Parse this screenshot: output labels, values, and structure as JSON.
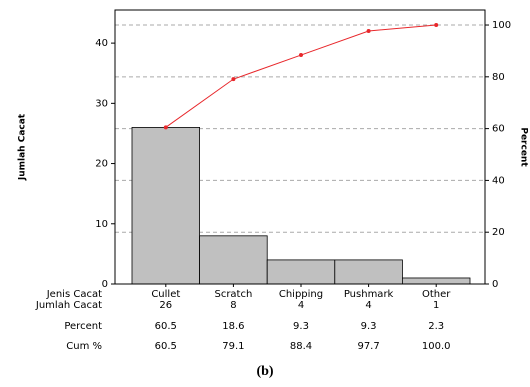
{
  "chart_data": {
    "type": "pareto",
    "ylabel": "Jumlah Cacat",
    "y2label": "Percent",
    "category_label": "Jenis Cacat",
    "categories": [
      "Cullet",
      "Scratch",
      "Chipping",
      "Pushmark",
      "Other"
    ],
    "series": [
      {
        "name": "Jumlah Cacat",
        "color": "#c0c0c0",
        "values": [
          26,
          8,
          4,
          4,
          1
        ]
      },
      {
        "name": "Cum %",
        "color": "#e8272b",
        "axis": "y2",
        "values": [
          60.5,
          79.1,
          88.4,
          97.7,
          100
        ],
        "value_labels": [
          "60.5",
          "79.1",
          "88.4",
          "97.7",
          "100.0"
        ]
      }
    ],
    "percent": {
      "name": "Percent",
      "values": [
        60.5,
        18.6,
        9.3,
        9.3,
        2.3
      ]
    },
    "ylim": [
      0,
      45.5
    ],
    "yticks": [
      0,
      10,
      20,
      30,
      40
    ],
    "y2lim": [
      0,
      105.8
    ],
    "y2ticks": [
      0,
      20,
      40,
      60,
      80,
      100
    ],
    "grid": true,
    "caption": "(b)"
  }
}
